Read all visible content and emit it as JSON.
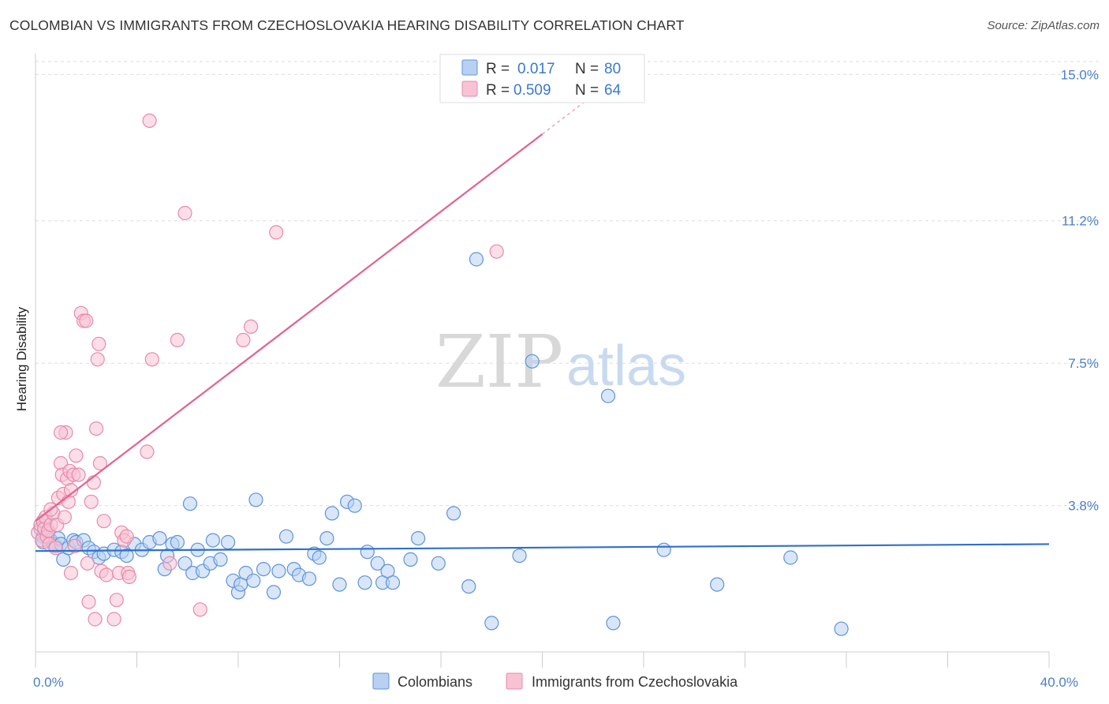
{
  "title": "COLOMBIAN VS IMMIGRANTS FROM CZECHOSLOVAKIA HEARING DISABILITY CORRELATION CHART",
  "source": "Source: ZipAtlas.com",
  "colors": {
    "blue_fill": "#b8d1f2",
    "blue_stroke": "#5f93d8",
    "blue_line": "#2f6fcc",
    "pink_fill": "#f7c3d3",
    "pink_stroke": "#e98aa8",
    "pink_line": "#e3628e",
    "axis_label": "#4a7fc9",
    "grid": "#dddddd"
  },
  "watermark": {
    "zip": "ZIP",
    "atlas": "atlas"
  },
  "legend": {
    "r_label": "R =",
    "n_label": "N =",
    "rows": [
      {
        "series": "Colombians",
        "r": "0.017",
        "n": "80"
      },
      {
        "series": "Immigrants from Czechoslovakia",
        "r": "0.509",
        "n": "64"
      }
    ]
  },
  "chart_data": {
    "type": "scatter",
    "title": "COLOMBIAN VS IMMIGRANTS FROM CZECHOSLOVAKIA HEARING DISABILITY CORRELATION CHART",
    "xlabel": "",
    "ylabel": "Hearing Disability",
    "xlim": [
      0,
      40
    ],
    "ylim": [
      0,
      15.5
    ],
    "x_tick_labels": [
      {
        "value": 0,
        "label": "0.0%"
      },
      {
        "value": 40,
        "label": "40.0%"
      }
    ],
    "x_minor_ticks": [
      0,
      4,
      8,
      12,
      16,
      20,
      24,
      28,
      32,
      36,
      40
    ],
    "y_tick_labels": [
      {
        "value": 3.8,
        "label": "3.8%"
      },
      {
        "value": 7.5,
        "label": "7.5%"
      },
      {
        "value": 11.2,
        "label": "11.2%"
      },
      {
        "value": 15.0,
        "label": "15.0%"
      }
    ],
    "grid": "horizontal dashed",
    "legend_position": "top-center",
    "series": [
      {
        "name": "Colombians",
        "r": 0.017,
        "n": 80,
        "trend": {
          "x": [
            0,
            40
          ],
          "y": [
            2.62,
            2.8
          ]
        },
        "points": [
          [
            0.2,
            3.2
          ],
          [
            0.3,
            3.0
          ],
          [
            0.4,
            3.4
          ],
          [
            0.5,
            3.1
          ],
          [
            0.6,
            2.9
          ],
          [
            0.7,
            2.8
          ],
          [
            0.8,
            2.75
          ],
          [
            0.9,
            2.95
          ],
          [
            1.0,
            2.8
          ],
          [
            1.1,
            2.4
          ],
          [
            1.3,
            2.7
          ],
          [
            1.5,
            2.9
          ],
          [
            1.6,
            2.85
          ],
          [
            1.9,
            2.9
          ],
          [
            2.1,
            2.7
          ],
          [
            2.3,
            2.6
          ],
          [
            2.5,
            2.45
          ],
          [
            2.7,
            2.55
          ],
          [
            3.1,
            2.65
          ],
          [
            3.4,
            2.6
          ],
          [
            3.6,
            2.5
          ],
          [
            3.9,
            2.8
          ],
          [
            4.2,
            2.65
          ],
          [
            4.5,
            2.85
          ],
          [
            4.9,
            2.95
          ],
          [
            5.1,
            2.15
          ],
          [
            5.2,
            2.5
          ],
          [
            5.4,
            2.8
          ],
          [
            5.6,
            2.85
          ],
          [
            5.9,
            2.3
          ],
          [
            6.1,
            3.85
          ],
          [
            6.2,
            2.05
          ],
          [
            6.4,
            2.65
          ],
          [
            6.6,
            2.1
          ],
          [
            6.9,
            2.3
          ],
          [
            7.0,
            2.9
          ],
          [
            7.3,
            2.4
          ],
          [
            7.6,
            2.85
          ],
          [
            7.8,
            1.85
          ],
          [
            8.0,
            1.55
          ],
          [
            8.1,
            1.75
          ],
          [
            8.3,
            2.05
          ],
          [
            8.6,
            1.85
          ],
          [
            8.7,
            3.95
          ],
          [
            9.0,
            2.15
          ],
          [
            9.4,
            1.55
          ],
          [
            9.6,
            2.1
          ],
          [
            9.9,
            3.0
          ],
          [
            10.2,
            2.15
          ],
          [
            10.4,
            2.0
          ],
          [
            10.8,
            1.9
          ],
          [
            11.0,
            2.55
          ],
          [
            11.2,
            2.45
          ],
          [
            11.5,
            2.95
          ],
          [
            11.7,
            3.6
          ],
          [
            12.0,
            1.75
          ],
          [
            12.3,
            3.9
          ],
          [
            12.6,
            3.8
          ],
          [
            13.0,
            1.8
          ],
          [
            13.1,
            2.6
          ],
          [
            13.5,
            2.3
          ],
          [
            13.7,
            1.8
          ],
          [
            13.9,
            2.1
          ],
          [
            14.1,
            1.8
          ],
          [
            14.8,
            2.4
          ],
          [
            15.1,
            2.95
          ],
          [
            15.9,
            2.3
          ],
          [
            16.5,
            3.6
          ],
          [
            17.1,
            1.7
          ],
          [
            17.4,
            10.2
          ],
          [
            18.0,
            0.75
          ],
          [
            19.1,
            2.5
          ],
          [
            19.6,
            7.55
          ],
          [
            22.6,
            6.65
          ],
          [
            22.8,
            0.75
          ],
          [
            24.8,
            2.65
          ],
          [
            26.9,
            1.75
          ],
          [
            29.8,
            2.45
          ],
          [
            31.8,
            0.6
          ],
          [
            0.3,
            2.85
          ]
        ]
      },
      {
        "name": "Immigrants from Czechoslovakia",
        "r": 0.509,
        "n": 64,
        "trend": {
          "x": [
            0,
            20
          ],
          "y": [
            3.4,
            13.45
          ]
        },
        "trend_dashed": {
          "x": [
            20,
            22.4
          ],
          "y": [
            13.45,
            14.66
          ]
        },
        "points": [
          [
            0.1,
            3.1
          ],
          [
            0.2,
            3.3
          ],
          [
            0.25,
            2.9
          ],
          [
            0.3,
            3.4
          ],
          [
            0.35,
            3.2
          ],
          [
            0.4,
            3.5
          ],
          [
            0.45,
            3.0
          ],
          [
            0.5,
            3.15
          ],
          [
            0.55,
            2.8
          ],
          [
            0.6,
            3.3
          ],
          [
            0.7,
            3.6
          ],
          [
            0.8,
            2.7
          ],
          [
            0.85,
            3.3
          ],
          [
            0.9,
            4.0
          ],
          [
            1.0,
            4.9
          ],
          [
            1.05,
            4.6
          ],
          [
            1.1,
            4.1
          ],
          [
            1.15,
            3.5
          ],
          [
            1.2,
            5.7
          ],
          [
            1.25,
            4.5
          ],
          [
            1.3,
            3.9
          ],
          [
            1.35,
            4.7
          ],
          [
            1.4,
            4.2
          ],
          [
            1.5,
            4.6
          ],
          [
            1.55,
            2.75
          ],
          [
            1.6,
            5.1
          ],
          [
            1.7,
            4.6
          ],
          [
            1.8,
            8.8
          ],
          [
            1.9,
            8.6
          ],
          [
            2.0,
            8.6
          ],
          [
            2.05,
            2.3
          ],
          [
            2.1,
            1.3
          ],
          [
            2.2,
            3.9
          ],
          [
            2.3,
            4.4
          ],
          [
            2.35,
            0.85
          ],
          [
            2.4,
            5.8
          ],
          [
            2.45,
            7.6
          ],
          [
            2.5,
            8.0
          ],
          [
            2.55,
            4.9
          ],
          [
            2.6,
            2.1
          ],
          [
            2.7,
            3.4
          ],
          [
            2.8,
            2.0
          ],
          [
            3.1,
            0.85
          ],
          [
            3.2,
            1.35
          ],
          [
            3.3,
            2.05
          ],
          [
            3.4,
            3.1
          ],
          [
            3.5,
            2.9
          ],
          [
            3.6,
            3.0
          ],
          [
            3.65,
            2.05
          ],
          [
            3.7,
            1.95
          ],
          [
            4.4,
            5.2
          ],
          [
            4.5,
            13.8
          ],
          [
            4.6,
            7.6
          ],
          [
            5.3,
            2.3
          ],
          [
            5.6,
            8.1
          ],
          [
            5.9,
            11.4
          ],
          [
            6.5,
            1.1
          ],
          [
            8.2,
            8.1
          ],
          [
            8.5,
            8.45
          ],
          [
            9.5,
            10.9
          ],
          [
            18.2,
            10.4
          ],
          [
            1.0,
            5.7
          ],
          [
            0.6,
            3.7
          ],
          [
            1.4,
            2.05
          ]
        ]
      }
    ]
  },
  "bottom_legend": [
    "Colombians",
    "Immigrants from Czechoslovakia"
  ]
}
